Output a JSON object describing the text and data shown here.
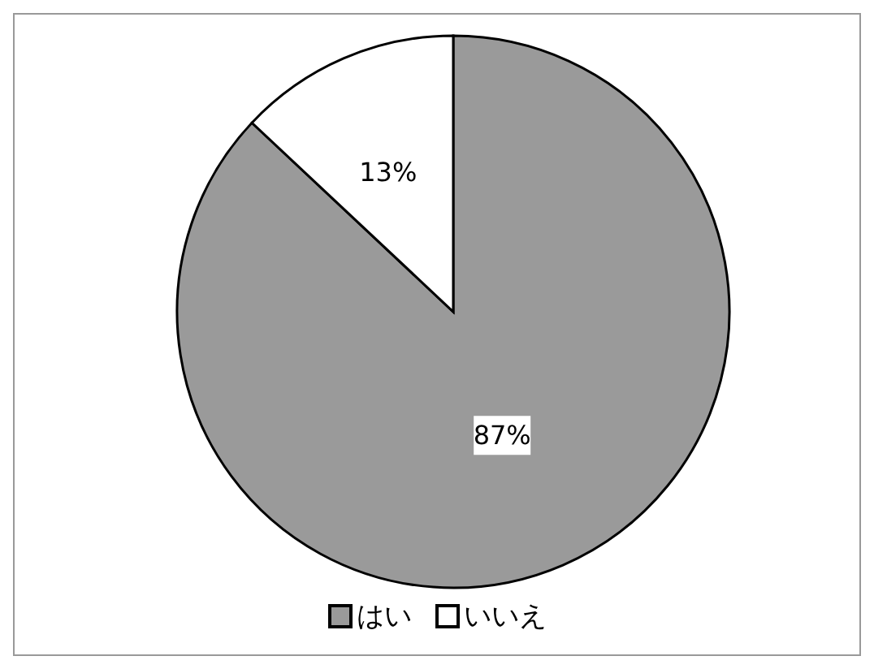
{
  "chart_data": {
    "type": "pie",
    "categories": [
      "はい",
      "いいえ"
    ],
    "values": [
      87,
      13
    ],
    "colors": [
      "#9a9a9a",
      "#ffffff"
    ],
    "value_labels": [
      "87%",
      "13%"
    ],
    "legend": "bottom"
  }
}
